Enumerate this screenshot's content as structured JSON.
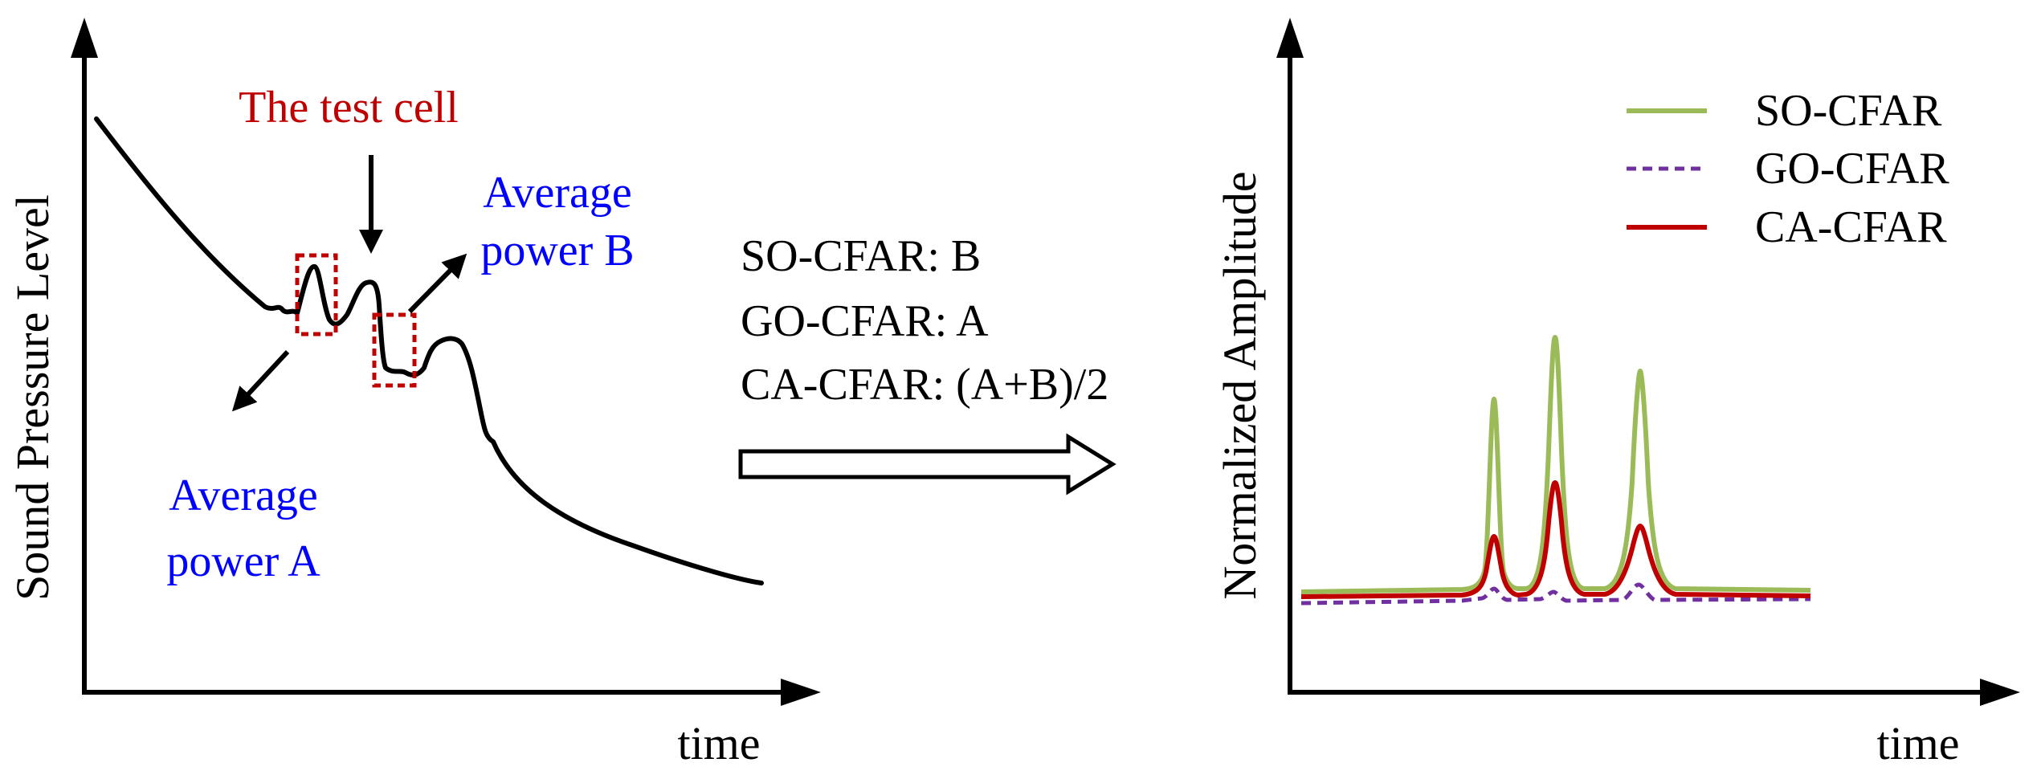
{
  "left_panel": {
    "y_axis_label": "Sound Pressure Level",
    "x_axis_label": "time",
    "test_cell_label": "The test cell",
    "power_b_line1": "Average",
    "power_b_line2": "power B",
    "power_a_line1": "Average",
    "power_a_line2": "power A"
  },
  "middle": {
    "rules": [
      "SO-CFAR: B",
      "GO-CFAR: A",
      "CA-CFAR: (A+B)/2"
    ]
  },
  "right_panel": {
    "y_axis_label": "Normalized Amplitude",
    "x_axis_label": "time",
    "legend": [
      {
        "label": "SO-CFAR",
        "color": "#9bbb59",
        "style": "solid"
      },
      {
        "label": "GO-CFAR",
        "color": "#7030a0",
        "style": "dashed"
      },
      {
        "label": "CA-CFAR",
        "color": "#c00000",
        "style": "solid"
      }
    ]
  },
  "colors": {
    "axis": "#000000",
    "test_cell": "#c00000",
    "average_power": "#0000ff"
  }
}
